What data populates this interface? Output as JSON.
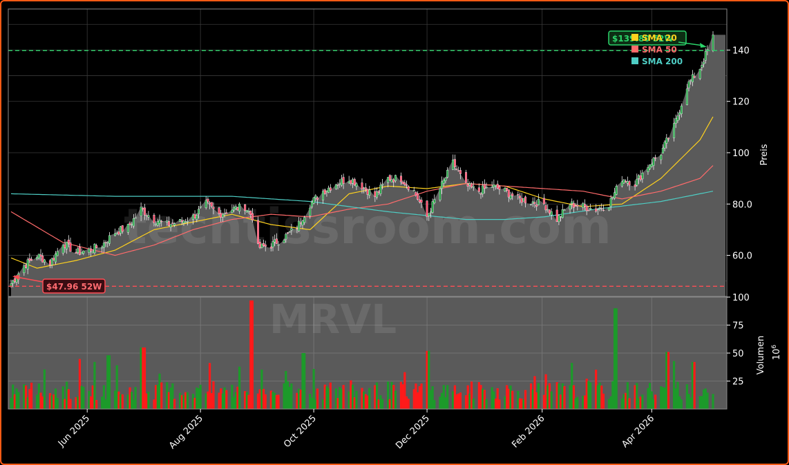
{
  "chart_data": {
    "type": "candlestick",
    "ticker": "MRVL",
    "watermark": "techtissroom.com",
    "price_panel": {
      "ylabel": "Preis",
      "ylim": [
        44,
        156
      ],
      "yticks": [
        60,
        80,
        100,
        120,
        140
      ],
      "ytick_labels": [
        "60.0",
        "80.0",
        "100",
        "120",
        "140"
      ],
      "high_52w": {
        "value": 139.8,
        "label": "$139.80 52W"
      },
      "low_52w": {
        "value": 47.96,
        "label": "$47.96 52W"
      },
      "legend": {
        "position": "top-right",
        "entries": [
          {
            "name": "SMA 20",
            "color": "#ffd21e"
          },
          {
            "name": "SMA 50",
            "color": "#ff6b6b"
          },
          {
            "name": "SMA 200",
            "color": "#4ecdc4"
          }
        ]
      },
      "candle_colors": {
        "up": "#2aa84a",
        "down": "#ff4d6d"
      },
      "area_color": "#5a5a5a",
      "close_keypoints": [
        [
          "2025-04-21",
          49
        ],
        [
          "2025-04-28",
          56
        ],
        [
          "2025-05-05",
          60
        ],
        [
          "2025-05-12",
          57
        ],
        [
          "2025-05-19",
          65
        ],
        [
          "2025-05-26",
          61
        ],
        [
          "2025-06-02",
          62
        ],
        [
          "2025-06-09",
          64
        ],
        [
          "2025-06-16",
          69
        ],
        [
          "2025-06-23",
          71
        ],
        [
          "2025-06-30",
          78
        ],
        [
          "2025-07-07",
          74
        ],
        [
          "2025-07-14",
          72
        ],
        [
          "2025-07-21",
          73
        ],
        [
          "2025-07-28",
          75
        ],
        [
          "2025-08-04",
          80
        ],
        [
          "2025-08-11",
          76
        ],
        [
          "2025-08-18",
          78
        ],
        [
          "2025-08-25",
          79
        ],
        [
          "2025-08-29",
          75
        ],
        [
          "2025-09-01",
          63
        ],
        [
          "2025-09-08",
          64
        ],
        [
          "2025-09-15",
          67
        ],
        [
          "2025-09-22",
          71
        ],
        [
          "2025-09-29",
          80
        ],
        [
          "2025-10-06",
          85
        ],
        [
          "2025-10-13",
          88
        ],
        [
          "2025-10-20",
          90
        ],
        [
          "2025-10-27",
          87
        ],
        [
          "2025-11-03",
          83
        ],
        [
          "2025-11-10",
          90
        ],
        [
          "2025-11-17",
          90
        ],
        [
          "2025-11-24",
          85
        ],
        [
          "2025-12-01",
          75
        ],
        [
          "2025-12-08",
          86
        ],
        [
          "2025-12-15",
          96
        ],
        [
          "2025-12-22",
          87
        ],
        [
          "2025-12-29",
          85
        ],
        [
          "2026-01-05",
          87
        ],
        [
          "2026-01-12",
          85
        ],
        [
          "2026-01-19",
          82
        ],
        [
          "2026-01-26",
          81
        ],
        [
          "2026-02-02",
          80
        ],
        [
          "2026-02-09",
          74
        ],
        [
          "2026-02-16",
          80
        ],
        [
          "2026-02-23",
          79
        ],
        [
          "2026-03-02",
          78
        ],
        [
          "2026-03-09",
          80
        ],
        [
          "2026-03-16",
          90
        ],
        [
          "2026-03-23",
          88
        ],
        [
          "2026-03-30",
          95
        ],
        [
          "2026-04-06",
          100
        ],
        [
          "2026-04-13",
          110
        ],
        [
          "2026-04-20",
          126
        ],
        [
          "2026-04-27",
          133
        ],
        [
          "2026-05-04",
          145
        ]
      ],
      "sma20_keypoints": [
        [
          "2025-04-21",
          59
        ],
        [
          "2025-05-05",
          55
        ],
        [
          "2025-05-26",
          58
        ],
        [
          "2025-06-16",
          62
        ],
        [
          "2025-07-07",
          70
        ],
        [
          "2025-07-28",
          73
        ],
        [
          "2025-08-18",
          76
        ],
        [
          "2025-09-08",
          72
        ],
        [
          "2025-09-29",
          70
        ],
        [
          "2025-10-20",
          84
        ],
        [
          "2025-11-10",
          87
        ],
        [
          "2025-12-01",
          86
        ],
        [
          "2025-12-22",
          88
        ],
        [
          "2026-01-12",
          87
        ],
        [
          "2026-02-02",
          82
        ],
        [
          "2026-02-23",
          79
        ],
        [
          "2026-03-16",
          80
        ],
        [
          "2026-04-06",
          90
        ],
        [
          "2026-04-27",
          105
        ],
        [
          "2026-05-04",
          114
        ]
      ],
      "sma50_keypoints": [
        [
          "2025-04-21",
          77
        ],
        [
          "2025-05-19",
          65
        ],
        [
          "2025-06-16",
          60
        ],
        [
          "2025-07-07",
          64
        ],
        [
          "2025-07-28",
          70
        ],
        [
          "2025-08-18",
          74
        ],
        [
          "2025-09-08",
          76
        ],
        [
          "2025-09-29",
          75
        ],
        [
          "2025-10-20",
          78
        ],
        [
          "2025-11-10",
          80
        ],
        [
          "2025-12-01",
          85
        ],
        [
          "2025-12-22",
          88
        ],
        [
          "2026-01-12",
          87
        ],
        [
          "2026-02-02",
          86
        ],
        [
          "2026-02-23",
          85
        ],
        [
          "2026-03-16",
          82
        ],
        [
          "2026-04-06",
          85
        ],
        [
          "2026-04-27",
          90
        ],
        [
          "2026-05-04",
          95
        ]
      ],
      "sma200_keypoints": [
        [
          "2025-04-21",
          84
        ],
        [
          "2025-06-16",
          83
        ],
        [
          "2025-08-18",
          83
        ],
        [
          "2025-09-29",
          81
        ],
        [
          "2025-11-10",
          77
        ],
        [
          "2025-12-22",
          74
        ],
        [
          "2026-01-12",
          74
        ],
        [
          "2026-02-02",
          75
        ],
        [
          "2026-03-02",
          78
        ],
        [
          "2026-04-06",
          81
        ],
        [
          "2026-05-04",
          85
        ]
      ]
    },
    "volume_panel": {
      "ylabel": "Volumen",
      "scale_label": "10^6",
      "ylim": [
        0,
        100
      ],
      "yticks": [
        25,
        50,
        75,
        100
      ],
      "ytick_labels": [
        "25",
        "50",
        "75",
        "100"
      ],
      "up_color": "#1c9a2a",
      "down_color": "#ff1a1a",
      "spikes": [
        [
          "2025-06-13",
          48
        ],
        [
          "2025-07-01",
          55
        ],
        [
          "2025-08-29",
          97
        ],
        [
          "2025-09-26",
          50
        ],
        [
          "2025-12-01",
          52
        ],
        [
          "2026-03-13",
          90
        ],
        [
          "2026-04-10",
          51
        ],
        [
          "2026-04-24",
          42
        ]
      ]
    },
    "x_axis": {
      "tick_dates": [
        "2025-06-01",
        "2025-08-01",
        "2025-10-01",
        "2025-12-01",
        "2026-02-01",
        "2026-04-01"
      ],
      "tick_labels": [
        "Jun 2025",
        "Aug 2025",
        "Oct 2025",
        "Dec 2025",
        "Feb 2026",
        "Apr 2026"
      ]
    },
    "grid": true
  }
}
